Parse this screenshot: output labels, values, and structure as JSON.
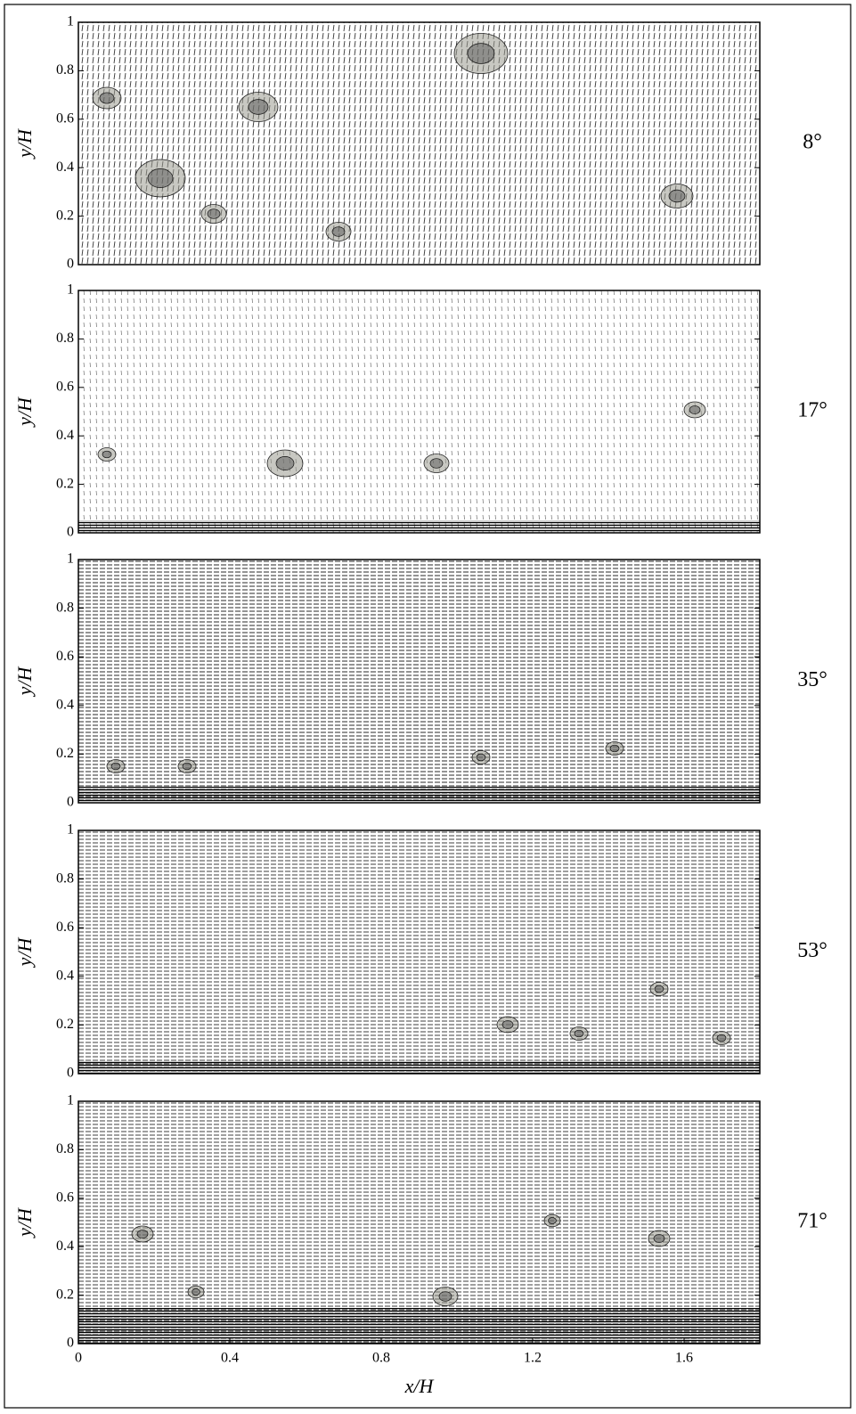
{
  "chart_data": [
    {
      "type": "quiver",
      "annotation": "8°",
      "ylabel": "y/H",
      "xlim": [
        0,
        1.8
      ],
      "ylim": [
        0,
        1
      ],
      "yticks": [
        0,
        0.2,
        0.4,
        0.6,
        0.8,
        1
      ]
    },
    {
      "type": "quiver",
      "annotation": "17°",
      "ylabel": "y/H",
      "xlim": [
        0,
        1.8
      ],
      "ylim": [
        0,
        1
      ],
      "yticks": [
        0,
        0.2,
        0.4,
        0.6,
        0.8,
        1
      ]
    },
    {
      "type": "quiver",
      "annotation": "35°",
      "ylabel": "y/H",
      "xlim": [
        0,
        1.8
      ],
      "ylim": [
        0,
        1
      ],
      "yticks": [
        0,
        0.2,
        0.4,
        0.6,
        0.8,
        1
      ]
    },
    {
      "type": "quiver",
      "annotation": "53°",
      "ylabel": "y/H",
      "xlim": [
        0,
        1.8
      ],
      "ylim": [
        0,
        1
      ],
      "yticks": [
        0,
        0.2,
        0.4,
        0.6,
        0.8,
        1
      ]
    },
    {
      "type": "quiver",
      "annotation": "71°",
      "ylabel": "y/H",
      "xlabel": "x/H",
      "xlim": [
        0,
        1.8
      ],
      "ylim": [
        0,
        1
      ],
      "yticks": [
        0,
        0.2,
        0.4,
        0.6,
        0.8,
        1
      ],
      "xticks": [
        0,
        0.4,
        0.8,
        1.2,
        1.6
      ]
    }
  ]
}
